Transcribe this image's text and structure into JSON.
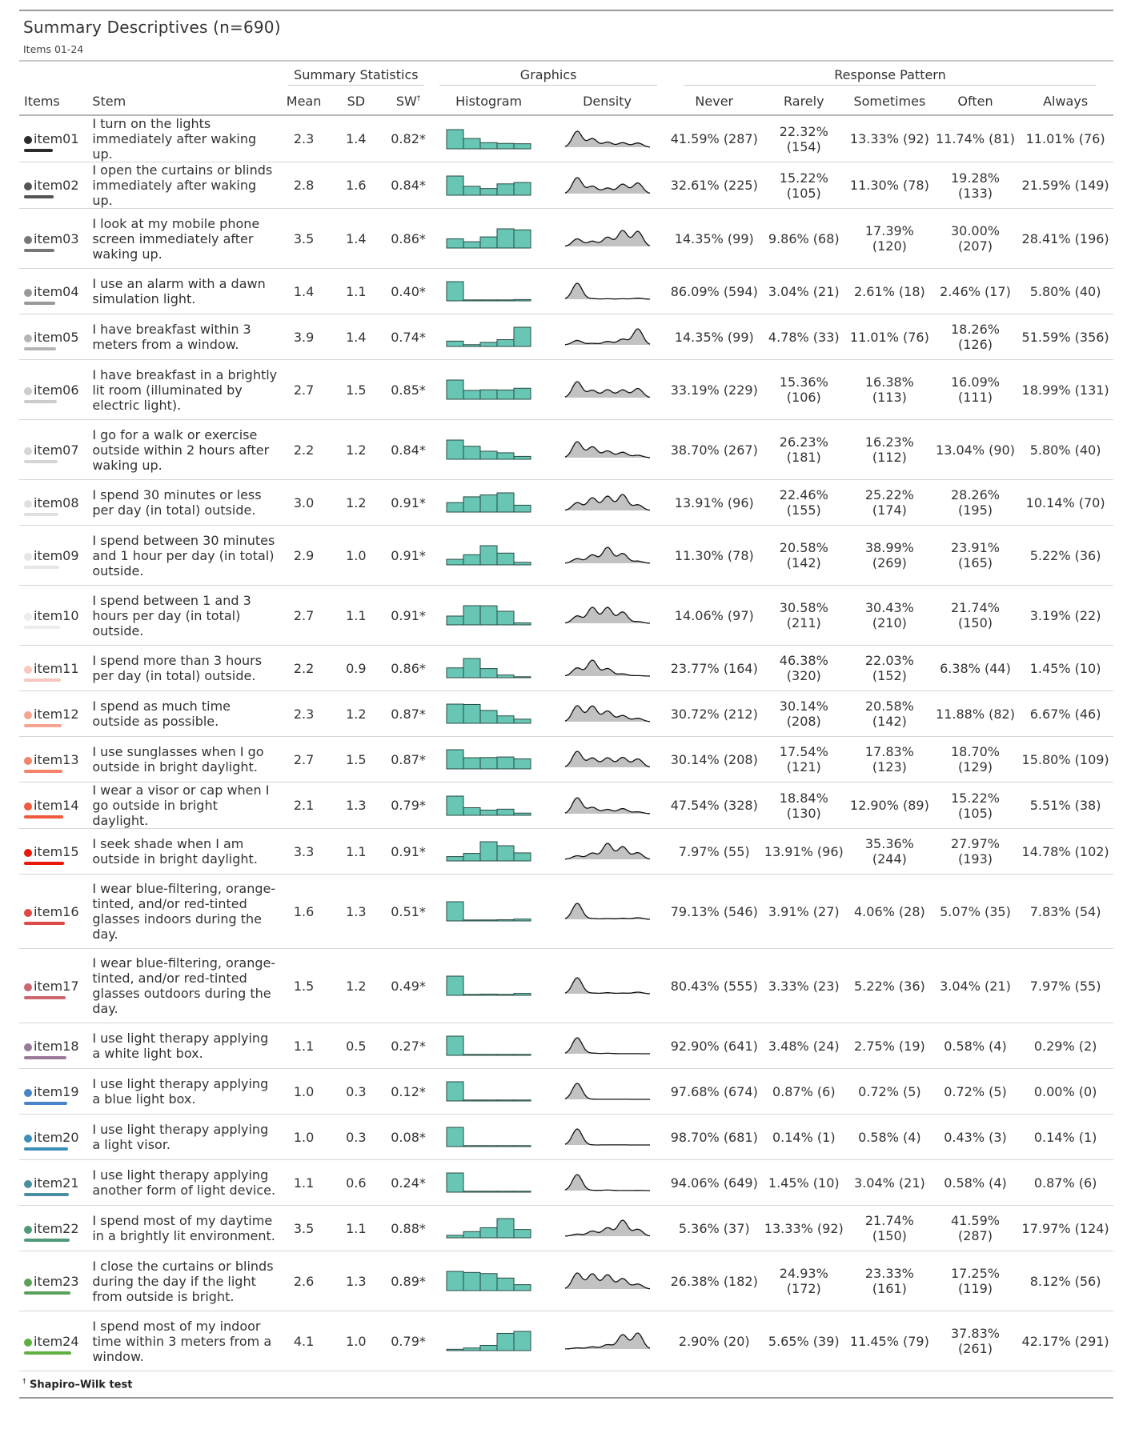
{
  "title": "Summary Descriptives (n=690)",
  "subtitle": "Items 01-24",
  "spanners": {
    "summary": "Summary Statistics",
    "graphics": "Graphics",
    "response": "Response Pattern"
  },
  "columns": {
    "items": "Items",
    "stem": "Stem",
    "mean": "Mean",
    "sd": "SD",
    "sw": "SW",
    "sw_mark": "†",
    "histogram": "Histogram",
    "density": "Density",
    "never": "Never",
    "rarely": "Rarely",
    "sometimes": "Sometimes",
    "often": "Often",
    "always": "Always"
  },
  "colors": {
    "histogram_fill": "#67c7b4",
    "histogram_stroke": "#2a4a44",
    "density_fill": "#c2c2c2"
  },
  "rows": [
    {
      "item": "item01",
      "color": "#2b2b2b",
      "stem": "I turn on the lights immediately after waking up.",
      "mean": "2.3",
      "sd": "1.4",
      "sw": "0.82*",
      "r": [
        "41.59% (287)",
        "22.32% (154)",
        "13.33% (92)",
        "11.74% (81)",
        "11.01% (76)"
      ],
      "p": [
        41.59,
        22.32,
        13.33,
        11.74,
        11.01
      ]
    },
    {
      "item": "item02",
      "color": "#555555",
      "stem": "I open the curtains or blinds immediately after waking up.",
      "mean": "2.8",
      "sd": "1.6",
      "sw": "0.84*",
      "r": [
        "32.61% (225)",
        "15.22% (105)",
        "11.30% (78)",
        "19.28% (133)",
        "21.59% (149)"
      ],
      "p": [
        32.61,
        15.22,
        11.3,
        19.28,
        21.59
      ]
    },
    {
      "item": "item03",
      "color": "#777777",
      "stem": "I look at my mobile phone screen immediately after waking up.",
      "mean": "3.5",
      "sd": "1.4",
      "sw": "0.86*",
      "r": [
        "14.35% (99)",
        "9.86% (68)",
        "17.39% (120)",
        "30.00% (207)",
        "28.41% (196)"
      ],
      "p": [
        14.35,
        9.86,
        17.39,
        30.0,
        28.41
      ]
    },
    {
      "item": "item04",
      "color": "#999999",
      "stem": "I use an alarm with a dawn simulation light.",
      "mean": "1.4",
      "sd": "1.1",
      "sw": "0.40*",
      "r": [
        "86.09% (594)",
        "3.04% (21)",
        "2.61% (18)",
        "2.46% (17)",
        "5.80% (40)"
      ],
      "p": [
        86.09,
        3.04,
        2.61,
        2.46,
        5.8
      ]
    },
    {
      "item": "item05",
      "color": "#b5b5b5",
      "stem": "I have breakfast within 3 meters from a window.",
      "mean": "3.9",
      "sd": "1.4",
      "sw": "0.74*",
      "r": [
        "14.35% (99)",
        "4.78% (33)",
        "11.01% (76)",
        "18.26% (126)",
        "51.59% (356)"
      ],
      "p": [
        14.35,
        4.78,
        11.01,
        18.26,
        51.59
      ]
    },
    {
      "item": "item06",
      "color": "#cccccc",
      "stem": "I have breakfast in a brightly lit room (illuminated by electric light).",
      "mean": "2.7",
      "sd": "1.5",
      "sw": "0.85*",
      "r": [
        "33.19% (229)",
        "15.36% (106)",
        "16.38% (113)",
        "16.09% (111)",
        "18.99% (131)"
      ],
      "p": [
        33.19,
        15.36,
        16.38,
        16.09,
        18.99
      ]
    },
    {
      "item": "item07",
      "color": "#d6d6d6",
      "stem": "I go for a walk or exercise outside within 2 hours after waking up.",
      "mean": "2.2",
      "sd": "1.2",
      "sw": "0.84*",
      "r": [
        "38.70% (267)",
        "26.23% (181)",
        "16.23% (112)",
        "13.04% (90)",
        "5.80% (40)"
      ],
      "p": [
        38.7,
        26.23,
        16.23,
        13.04,
        5.8
      ]
    },
    {
      "item": "item08",
      "color": "#e0e0e0",
      "stem": "I spend 30 minutes or less per day (in total) outside.",
      "mean": "3.0",
      "sd": "1.2",
      "sw": "0.91*",
      "r": [
        "13.91% (96)",
        "22.46% (155)",
        "25.22% (174)",
        "28.26% (195)",
        "10.14% (70)"
      ],
      "p": [
        13.91,
        22.46,
        25.22,
        28.26,
        10.14
      ]
    },
    {
      "item": "item09",
      "color": "#e6e6e6",
      "stem": "I spend between 30 minutes and 1 hour per day (in total) outside.",
      "mean": "2.9",
      "sd": "1.0",
      "sw": "0.91*",
      "r": [
        "11.30% (78)",
        "20.58% (142)",
        "38.99% (269)",
        "23.91% (165)",
        "5.22% (36)"
      ],
      "p": [
        11.3,
        20.58,
        38.99,
        23.91,
        5.22
      ]
    },
    {
      "item": "item10",
      "color": "#ececec",
      "stem": "I spend between 1 and 3 hours per day (in total) outside.",
      "mean": "2.7",
      "sd": "1.1",
      "sw": "0.91*",
      "r": [
        "14.06% (97)",
        "30.58% (211)",
        "30.43% (210)",
        "21.74% (150)",
        "3.19% (22)"
      ],
      "p": [
        14.06,
        30.58,
        30.43,
        21.74,
        3.19
      ]
    },
    {
      "item": "item11",
      "color": "#f8c7bd",
      "stem": "I spend more than 3 hours per day (in total) outside.",
      "mean": "2.2",
      "sd": "0.9",
      "sw": "0.86*",
      "r": [
        "23.77% (164)",
        "46.38% (320)",
        "22.03% (152)",
        "6.38% (44)",
        "1.45% (10)"
      ],
      "p": [
        23.77,
        46.38,
        22.03,
        6.38,
        1.45
      ]
    },
    {
      "item": "item12",
      "color": "#f6a48f",
      "stem": "I spend as much time outside as possible.",
      "mean": "2.3",
      "sd": "1.2",
      "sw": "0.87*",
      "r": [
        "30.72% (212)",
        "30.14% (208)",
        "20.58% (142)",
        "11.88% (82)",
        "6.67% (46)"
      ],
      "p": [
        30.72,
        30.14,
        20.58,
        11.88,
        6.67
      ]
    },
    {
      "item": "item13",
      "color": "#f3846a",
      "stem": "I use sunglasses when I go outside in bright daylight.",
      "mean": "2.7",
      "sd": "1.5",
      "sw": "0.87*",
      "r": [
        "30.14% (208)",
        "17.54% (121)",
        "17.83% (123)",
        "18.70% (129)",
        "15.80% (109)"
      ],
      "p": [
        30.14,
        17.54,
        17.83,
        18.7,
        15.8
      ]
    },
    {
      "item": "item14",
      "color": "#f05a3a",
      "stem": "I wear a visor or cap when I go outside in bright daylight.",
      "mean": "2.1",
      "sd": "1.3",
      "sw": "0.79*",
      "r": [
        "47.54% (328)",
        "18.84% (130)",
        "12.90% (89)",
        "15.22% (105)",
        "5.51% (38)"
      ],
      "p": [
        47.54,
        18.84,
        12.9,
        15.22,
        5.51
      ]
    },
    {
      "item": "item15",
      "color": "#e8180a",
      "stem": "I seek shade when I am outside in bright daylight.",
      "mean": "3.3",
      "sd": "1.1",
      "sw": "0.91*",
      "r": [
        "7.97% (55)",
        "13.91% (96)",
        "35.36% (244)",
        "27.97% (193)",
        "14.78% (102)"
      ],
      "p": [
        7.97,
        13.91,
        35.36,
        27.97,
        14.78
      ]
    },
    {
      "item": "item16",
      "color": "#e04a45",
      "stem": "I wear blue-filtering, orange-tinted, and/or red-tinted glasses indoors during the day.",
      "mean": "1.6",
      "sd": "1.3",
      "sw": "0.51*",
      "r": [
        "79.13% (546)",
        "3.91% (27)",
        "4.06% (28)",
        "5.07% (35)",
        "7.83% (54)"
      ],
      "p": [
        79.13,
        3.91,
        4.06,
        5.07,
        7.83
      ]
    },
    {
      "item": "item17",
      "color": "#cc6670",
      "stem": "I wear blue-filtering, orange-tinted, and/or red-tinted glasses outdoors during the day.",
      "mean": "1.5",
      "sd": "1.2",
      "sw": "0.49*",
      "r": [
        "80.43% (555)",
        "3.33% (23)",
        "5.22% (36)",
        "3.04% (21)",
        "7.97% (55)"
      ],
      "p": [
        80.43,
        3.33,
        5.22,
        3.04,
        7.97
      ]
    },
    {
      "item": "item18",
      "color": "#9a7a9a",
      "stem": "I use light therapy applying a white light box.",
      "mean": "1.1",
      "sd": "0.5",
      "sw": "0.27*",
      "r": [
        "92.90% (641)",
        "3.48% (24)",
        "2.75% (19)",
        "0.58% (4)",
        "0.29% (2)"
      ],
      "p": [
        92.9,
        3.48,
        2.75,
        0.58,
        0.29
      ]
    },
    {
      "item": "item19",
      "color": "#4a84c8",
      "stem": "I use light therapy applying a blue light box.",
      "mean": "1.0",
      "sd": "0.3",
      "sw": "0.12*",
      "r": [
        "97.68% (674)",
        "0.87% (6)",
        "0.72% (5)",
        "0.72% (5)",
        "0.00% (0)"
      ],
      "p": [
        97.68,
        0.87,
        0.72,
        0.72,
        0.0
      ]
    },
    {
      "item": "item20",
      "color": "#3b8fb8",
      "stem": "I use light therapy applying a light visor.",
      "mean": "1.0",
      "sd": "0.3",
      "sw": "0.08*",
      "r": [
        "98.70% (681)",
        "0.14% (1)",
        "0.58% (4)",
        "0.43% (3)",
        "0.14% (1)"
      ],
      "p": [
        98.7,
        0.14,
        0.58,
        0.43,
        0.14
      ]
    },
    {
      "item": "item21",
      "color": "#4a8fa0",
      "stem": "I use light therapy applying another form of light device.",
      "mean": "1.1",
      "sd": "0.6",
      "sw": "0.24*",
      "r": [
        "94.06% (649)",
        "1.45% (10)",
        "3.04% (21)",
        "0.58% (4)",
        "0.87% (6)"
      ],
      "p": [
        94.06,
        1.45,
        3.04,
        0.58,
        0.87
      ]
    },
    {
      "item": "item22",
      "color": "#4f9a78",
      "stem": "I spend most of my daytime in a brightly lit environment.",
      "mean": "3.5",
      "sd": "1.1",
      "sw": "0.88*",
      "r": [
        "5.36% (37)",
        "13.33% (92)",
        "21.74% (150)",
        "41.59% (287)",
        "17.97% (124)"
      ],
      "p": [
        5.36,
        13.33,
        21.74,
        41.59,
        17.97
      ]
    },
    {
      "item": "item23",
      "color": "#5aa05a",
      "stem": "I close the curtains or blinds during the day if the light from outside is bright.",
      "mean": "2.6",
      "sd": "1.3",
      "sw": "0.89*",
      "r": [
        "26.38% (182)",
        "24.93% (172)",
        "23.33% (161)",
        "17.25% (119)",
        "8.12% (56)"
      ],
      "p": [
        26.38,
        24.93,
        23.33,
        17.25,
        8.12
      ]
    },
    {
      "item": "item24",
      "color": "#5fb040",
      "stem": "I spend most of my indoor time within 3 meters from a window.",
      "mean": "4.1",
      "sd": "1.0",
      "sw": "0.79*",
      "r": [
        "2.90% (20)",
        "5.65% (39)",
        "11.45% (79)",
        "37.83% (261)",
        "42.17% (291)"
      ],
      "p": [
        2.9,
        5.65,
        11.45,
        37.83,
        42.17
      ]
    }
  ],
  "footnote": {
    "mark": "†",
    "text": "Shapiro–Wilk test"
  }
}
